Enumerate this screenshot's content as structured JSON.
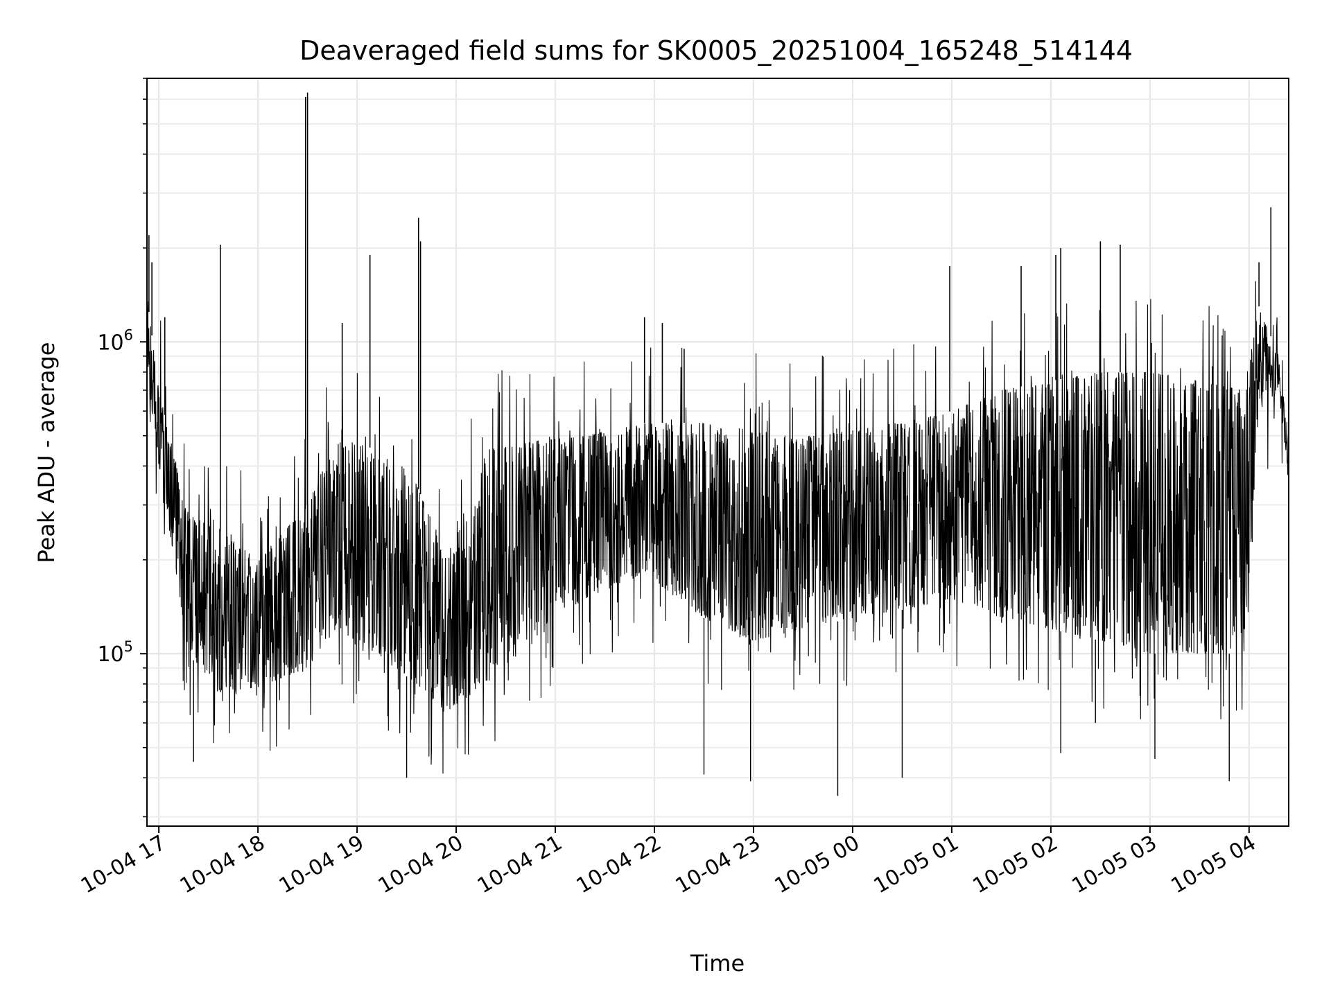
{
  "chart_data": {
    "type": "line",
    "title": "Deaveraged field sums for SK0005_20251004_165248_514144",
    "xlabel": "Time",
    "ylabel": "Peak ADU - average",
    "yscale": "log",
    "ylim": [
      28000,
      7000000
    ],
    "xlim_hours": [
      16.88,
      28.4
    ],
    "grid": true,
    "x_ticks": [
      {
        "hour": 17,
        "label": "10-04 17"
      },
      {
        "hour": 18,
        "label": "10-04 18"
      },
      {
        "hour": 19,
        "label": "10-04 19"
      },
      {
        "hour": 20,
        "label": "10-04 20"
      },
      {
        "hour": 21,
        "label": "10-04 21"
      },
      {
        "hour": 22,
        "label": "10-04 22"
      },
      {
        "hour": 23,
        "label": "10-04 23"
      },
      {
        "hour": 24,
        "label": "10-05 00"
      },
      {
        "hour": 25,
        "label": "10-05 01"
      },
      {
        "hour": 26,
        "label": "10-05 02"
      },
      {
        "hour": 27,
        "label": "10-05 03"
      },
      {
        "hour": 28,
        "label": "10-05 04"
      }
    ],
    "y_ticks": [
      {
        "value": 100000,
        "base": "10",
        "exp": "5"
      },
      {
        "value": 1000000,
        "base": "10",
        "exp": "6"
      }
    ],
    "series_color": "#000000",
    "envelope": {
      "hours": [
        16.88,
        17.0,
        17.3,
        17.6,
        18.0,
        18.5,
        18.8,
        19.2,
        19.6,
        19.9,
        20.3,
        20.8,
        21.3,
        21.9,
        22.5,
        23.0,
        23.5,
        24.0,
        24.6,
        25.0,
        25.5,
        26.0,
        26.5,
        27.0,
        27.5,
        27.95,
        28.1,
        28.3,
        28.4
      ],
      "low": [
        800000,
        400000,
        100000,
        75000,
        78000,
        90000,
        120000,
        100000,
        80000,
        65000,
        80000,
        110000,
        150000,
        180000,
        130000,
        110000,
        120000,
        130000,
        140000,
        150000,
        130000,
        120000,
        110000,
        100000,
        100000,
        100000,
        600000,
        700000,
        350000
      ],
      "high": [
        1400000,
        700000,
        280000,
        250000,
        200000,
        300000,
        500000,
        450000,
        350000,
        200000,
        450000,
        480000,
        500000,
        550000,
        550000,
        520000,
        500000,
        520000,
        560000,
        600000,
        700000,
        750000,
        800000,
        800000,
        750000,
        700000,
        1300000,
        900000,
        500000
      ]
    },
    "spikes": [
      {
        "hour": 16.9,
        "value": 2200000
      },
      {
        "hour": 16.93,
        "value": 1800000
      },
      {
        "hour": 17.06,
        "value": 1200000
      },
      {
        "hour": 17.62,
        "value": 2050000
      },
      {
        "hour": 18.48,
        "value": 6100000
      },
      {
        "hour": 18.5,
        "value": 6300000
      },
      {
        "hour": 18.85,
        "value": 1150000
      },
      {
        "hour": 19.13,
        "value": 1900000
      },
      {
        "hour": 19.62,
        "value": 2500000
      },
      {
        "hour": 19.64,
        "value": 2100000
      },
      {
        "hour": 21.9,
        "value": 1200000
      },
      {
        "hour": 22.08,
        "value": 1150000
      },
      {
        "hour": 22.3,
        "value": 950000
      },
      {
        "hour": 24.98,
        "value": 1750000
      },
      {
        "hour": 25.7,
        "value": 1750000
      },
      {
        "hour": 26.05,
        "value": 1900000
      },
      {
        "hour": 26.1,
        "value": 2000000
      },
      {
        "hour": 26.5,
        "value": 2100000
      },
      {
        "hour": 26.7,
        "value": 2050000
      },
      {
        "hour": 28.22,
        "value": 2700000
      },
      {
        "hour": 28.1,
        "value": 1800000
      }
    ],
    "dips": [
      {
        "hour": 17.35,
        "value": 45000
      },
      {
        "hour": 19.5,
        "value": 40000
      },
      {
        "hour": 22.5,
        "value": 41000
      },
      {
        "hour": 22.97,
        "value": 39000
      },
      {
        "hour": 23.85,
        "value": 35000
      },
      {
        "hour": 24.5,
        "value": 40000
      },
      {
        "hour": 26.1,
        "value": 48000
      },
      {
        "hour": 26.45,
        "value": 60000
      },
      {
        "hour": 27.05,
        "value": 46000
      },
      {
        "hour": 27.8,
        "value": 39000
      }
    ]
  }
}
